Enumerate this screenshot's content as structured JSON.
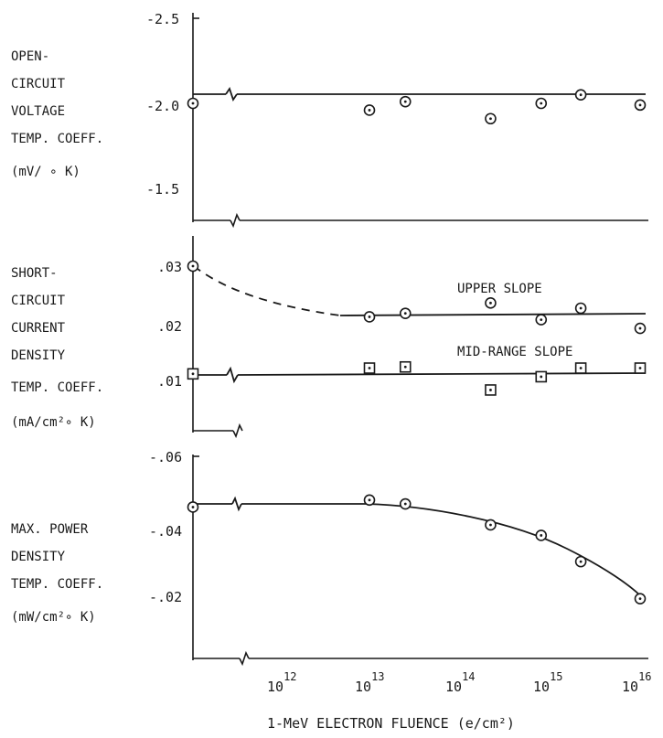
{
  "chart_data": [
    {
      "type": "scatter",
      "panel": "open-circuit-voltage",
      "ylabel": [
        "OPEN-",
        "CIRCUIT",
        "VOLTAGE",
        "TEMP. COEFF.",
        "(mV/ ∘ K)"
      ],
      "ylim": [
        -1.3,
        -2.5
      ],
      "ytick_labels": [
        "-2.5",
        "-2.0",
        "-1.5"
      ],
      "ytick_values": [
        -2.5,
        -2.0,
        -1.5
      ],
      "series": [
        {
          "points": [
            {
              "x": "unirradiated",
              "y": -2.0
            },
            {
              "x": 10000000000000.0,
              "y": -1.96
            },
            {
              "x": 25000000000000.0,
              "y": -2.01
            },
            {
              "x": 220000000000000.0,
              "y": -1.91
            },
            {
              "x": 800000000000000.0,
              "y": -2.0
            },
            {
              "x": 2200000000000000.0,
              "y": -2.05
            },
            {
              "x": 1e+16,
              "y": -1.99
            }
          ],
          "fit": {
            "style": "solid",
            "value": -2.0
          }
        }
      ]
    },
    {
      "type": "scatter",
      "panel": "short-circuit-current-density",
      "ylabel": [
        "SHORT-",
        "CIRCUIT",
        "CURRENT",
        "DENSITY",
        "TEMP. COEFF.",
        "(mA/cm²∘ K)"
      ],
      "ylim": [
        0.0,
        0.0345
      ],
      "ytick_labels": [
        ".03",
        ".02",
        ".01"
      ],
      "ytick_values": [
        0.03,
        0.02,
        0.01
      ],
      "series": [
        {
          "name": "UPPER SLOPE",
          "marker": "circle-dot",
          "points": [
            {
              "x": "unirradiated",
              "y": 0.03
            },
            {
              "x": 10000000000000.0,
              "y": 0.0212
            },
            {
              "x": 25000000000000.0,
              "y": 0.0218
            },
            {
              "x": 220000000000000.0,
              "y": 0.0236
            },
            {
              "x": 800000000000000.0,
              "y": 0.0207
            },
            {
              "x": 2200000000000000.0,
              "y": 0.0227
            },
            {
              "x": 1e+16,
              "y": 0.0192
            }
          ],
          "fit": {
            "dashed_from": 0.03,
            "solid_value": 0.0215
          }
        },
        {
          "name": "MID-RANGE SLOPE",
          "marker": "square-dot",
          "points": [
            {
              "x": "unirradiated",
              "y": 0.0113
            },
            {
              "x": 10000000000000.0,
              "y": 0.0123
            },
            {
              "x": 25000000000000.0,
              "y": 0.0125
            },
            {
              "x": 220000000000000.0,
              "y": 0.0085
            },
            {
              "x": 800000000000000.0,
              "y": 0.0108
            },
            {
              "x": 2200000000000000.0,
              "y": 0.0123
            },
            {
              "x": 1e+16,
              "y": 0.0123
            }
          ],
          "fit": {
            "style": "solid",
            "value": 0.0115
          }
        }
      ]
    },
    {
      "type": "scatter",
      "panel": "max-power-density",
      "ylabel": [
        "MAX. POWER",
        "DENSITY",
        "TEMP. COEFF.",
        "(mW/cm²∘ K)"
      ],
      "ylim": [
        -0.005,
        -0.061
      ],
      "ytick_labels": [
        "-.06",
        "-.04",
        "-.02"
      ],
      "ytick_values": [
        -0.06,
        -0.04,
        -0.02
      ],
      "series": [
        {
          "points": [
            {
              "x": "unirradiated",
              "y": -0.0455
            },
            {
              "x": 10000000000000.0,
              "y": -0.0475
            },
            {
              "x": 25000000000000.0,
              "y": -0.0464
            },
            {
              "x": 220000000000000.0,
              "y": -0.0404
            },
            {
              "x": 800000000000000.0,
              "y": -0.0374
            },
            {
              "x": 2200000000000000.0,
              "y": -0.0299
            },
            {
              "x": 1e+16,
              "y": -0.0193
            }
          ],
          "fit": {
            "style": "solid-curve"
          }
        }
      ]
    }
  ],
  "x_axis": {
    "xlabel": "1-MeV ELECTRON FLUENCE (e/cm²)",
    "scale": "log",
    "tick_labels": [
      {
        "base": "10",
        "exp": "12"
      },
      {
        "base": "10",
        "exp": "13"
      },
      {
        "base": "10",
        "exp": "14"
      },
      {
        "base": "10",
        "exp": "15"
      },
      {
        "base": "10",
        "exp": "16"
      }
    ]
  },
  "colors": {
    "ink": "#1a1a1a",
    "background": "#ffffff"
  }
}
